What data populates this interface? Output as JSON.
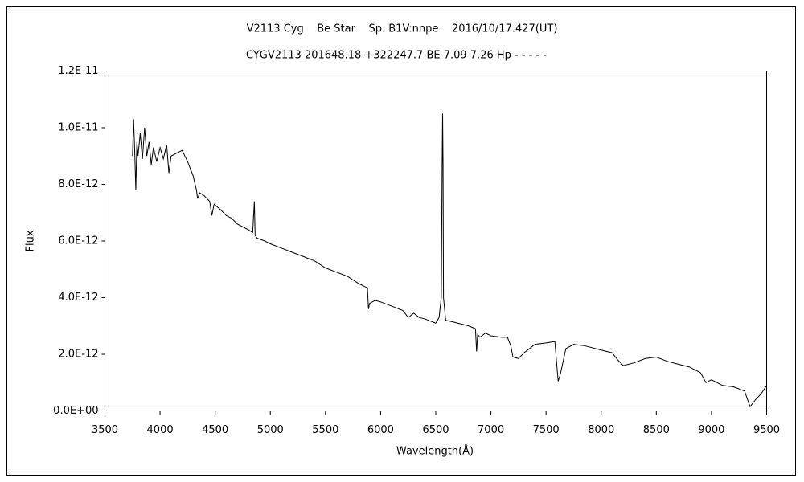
{
  "chart_data": {
    "type": "line",
    "title": "V2113 Cyg    Be Star    Sp. B1V:nnpe    2016/10/17.427(UT)",
    "subtitle": "CYGV2113 201648.18 +322247.7 BE 7.09 7.26 Hp - - - - -",
    "xlabel": "Wavelength(Å)",
    "ylabel": "Flux",
    "xlim": [
      3500,
      9500
    ],
    "xticks": [
      3500,
      4000,
      4500,
      5000,
      5500,
      6000,
      6500,
      7000,
      7500,
      8000,
      8500,
      9000,
      9500
    ],
    "ylim": [
      0,
      1.2e-11
    ],
    "yticks": [
      {
        "value": 0,
        "label": "0.0E+00"
      },
      {
        "value": 2e-12,
        "label": "2.0E-12"
      },
      {
        "value": 4e-12,
        "label": "4.0E-12"
      },
      {
        "value": 6e-12,
        "label": "6.0E-12"
      },
      {
        "value": 8e-12,
        "label": "8.0E-12"
      },
      {
        "value": 1e-11,
        "label": "1.0E-11"
      },
      {
        "value": 1.2e-11,
        "label": "1.2E-11"
      }
    ],
    "grid": false,
    "series": [
      {
        "color": "#000000",
        "x": [
          3750,
          3760,
          3770,
          3780,
          3790,
          3800,
          3820,
          3840,
          3860,
          3880,
          3900,
          3920,
          3940,
          3970,
          4000,
          4030,
          4060,
          4080,
          4100,
          4150,
          4200,
          4250,
          4300,
          4330,
          4340,
          4360,
          4400,
          4450,
          4470,
          4490,
          4550,
          4600,
          4650,
          4700,
          4750,
          4800,
          4840,
          4855,
          4862,
          4880,
          4950,
          5000,
          5100,
          5200,
          5300,
          5400,
          5500,
          5600,
          5700,
          5800,
          5850,
          5880,
          5890,
          5900,
          5950,
          6000,
          6100,
          6200,
          6250,
          6300,
          6350,
          6400,
          6500,
          6530,
          6550,
          6558,
          6562,
          6566,
          6570,
          6590,
          6650,
          6700,
          6800,
          6860,
          6870,
          6880,
          6900,
          6950,
          7000,
          7100,
          7150,
          7180,
          7200,
          7250,
          7300,
          7400,
          7500,
          7580,
          7600,
          7610,
          7630,
          7680,
          7750,
          7850,
          8000,
          8100,
          8150,
          8200,
          8300,
          8400,
          8500,
          8600,
          8700,
          8800,
          8900,
          8950,
          9000,
          9100,
          9200,
          9300,
          9350,
          9400,
          9450,
          9500
        ],
        "values": [
          9e-12,
          1.03e-11,
          9.2e-12,
          7.8e-12,
          9.5e-12,
          9e-12,
          9.8e-12,
          8.9e-12,
          1e-11,
          9e-12,
          9.5e-12,
          8.7e-12,
          9.3e-12,
          8.8e-12,
          9.3e-12,
          8.9e-12,
          9.4e-12,
          8.4e-12,
          9e-12,
          9.1e-12,
          9.2e-12,
          8.8e-12,
          8.3e-12,
          7.8e-12,
          7.5e-12,
          7.7e-12,
          7.6e-12,
          7.4e-12,
          6.9e-12,
          7.3e-12,
          7.1e-12,
          6.9e-12,
          6.8e-12,
          6.6e-12,
          6.5e-12,
          6.4e-12,
          6.3e-12,
          7.4e-12,
          6.2e-12,
          6.1e-12,
          6e-12,
          5.9e-12,
          5.75e-12,
          5.6e-12,
          5.45e-12,
          5.3e-12,
          5.05e-12,
          4.9e-12,
          4.75e-12,
          4.5e-12,
          4.4e-12,
          4.35e-12,
          3.6e-12,
          3.8e-12,
          3.9e-12,
          3.85e-12,
          3.7e-12,
          3.55e-12,
          3.3e-12,
          3.45e-12,
          3.3e-12,
          3.25e-12,
          3.1e-12,
          3.3e-12,
          4e-12,
          8.8e-12,
          1.05e-11,
          8.7e-12,
          4e-12,
          3.2e-12,
          3.15e-12,
          3.1e-12,
          3e-12,
          2.9e-12,
          2.1e-12,
          2.7e-12,
          2.6e-12,
          2.75e-12,
          2.65e-12,
          2.6e-12,
          2.6e-12,
          2.3e-12,
          1.9e-12,
          1.85e-12,
          2.05e-12,
          2.35e-12,
          2.4e-12,
          2.45e-12,
          1.5e-12,
          1.05e-12,
          1.3e-12,
          2.2e-12,
          2.35e-12,
          2.3e-12,
          2.15e-12,
          2.05e-12,
          1.8e-12,
          1.6e-12,
          1.7e-12,
          1.85e-12,
          1.9e-12,
          1.75e-12,
          1.65e-12,
          1.55e-12,
          1.35e-12,
          1e-12,
          1.1e-12,
          9e-13,
          8.5e-13,
          7e-13,
          1.5e-13,
          4e-13,
          6e-13,
          9e-13
        ]
      }
    ]
  }
}
